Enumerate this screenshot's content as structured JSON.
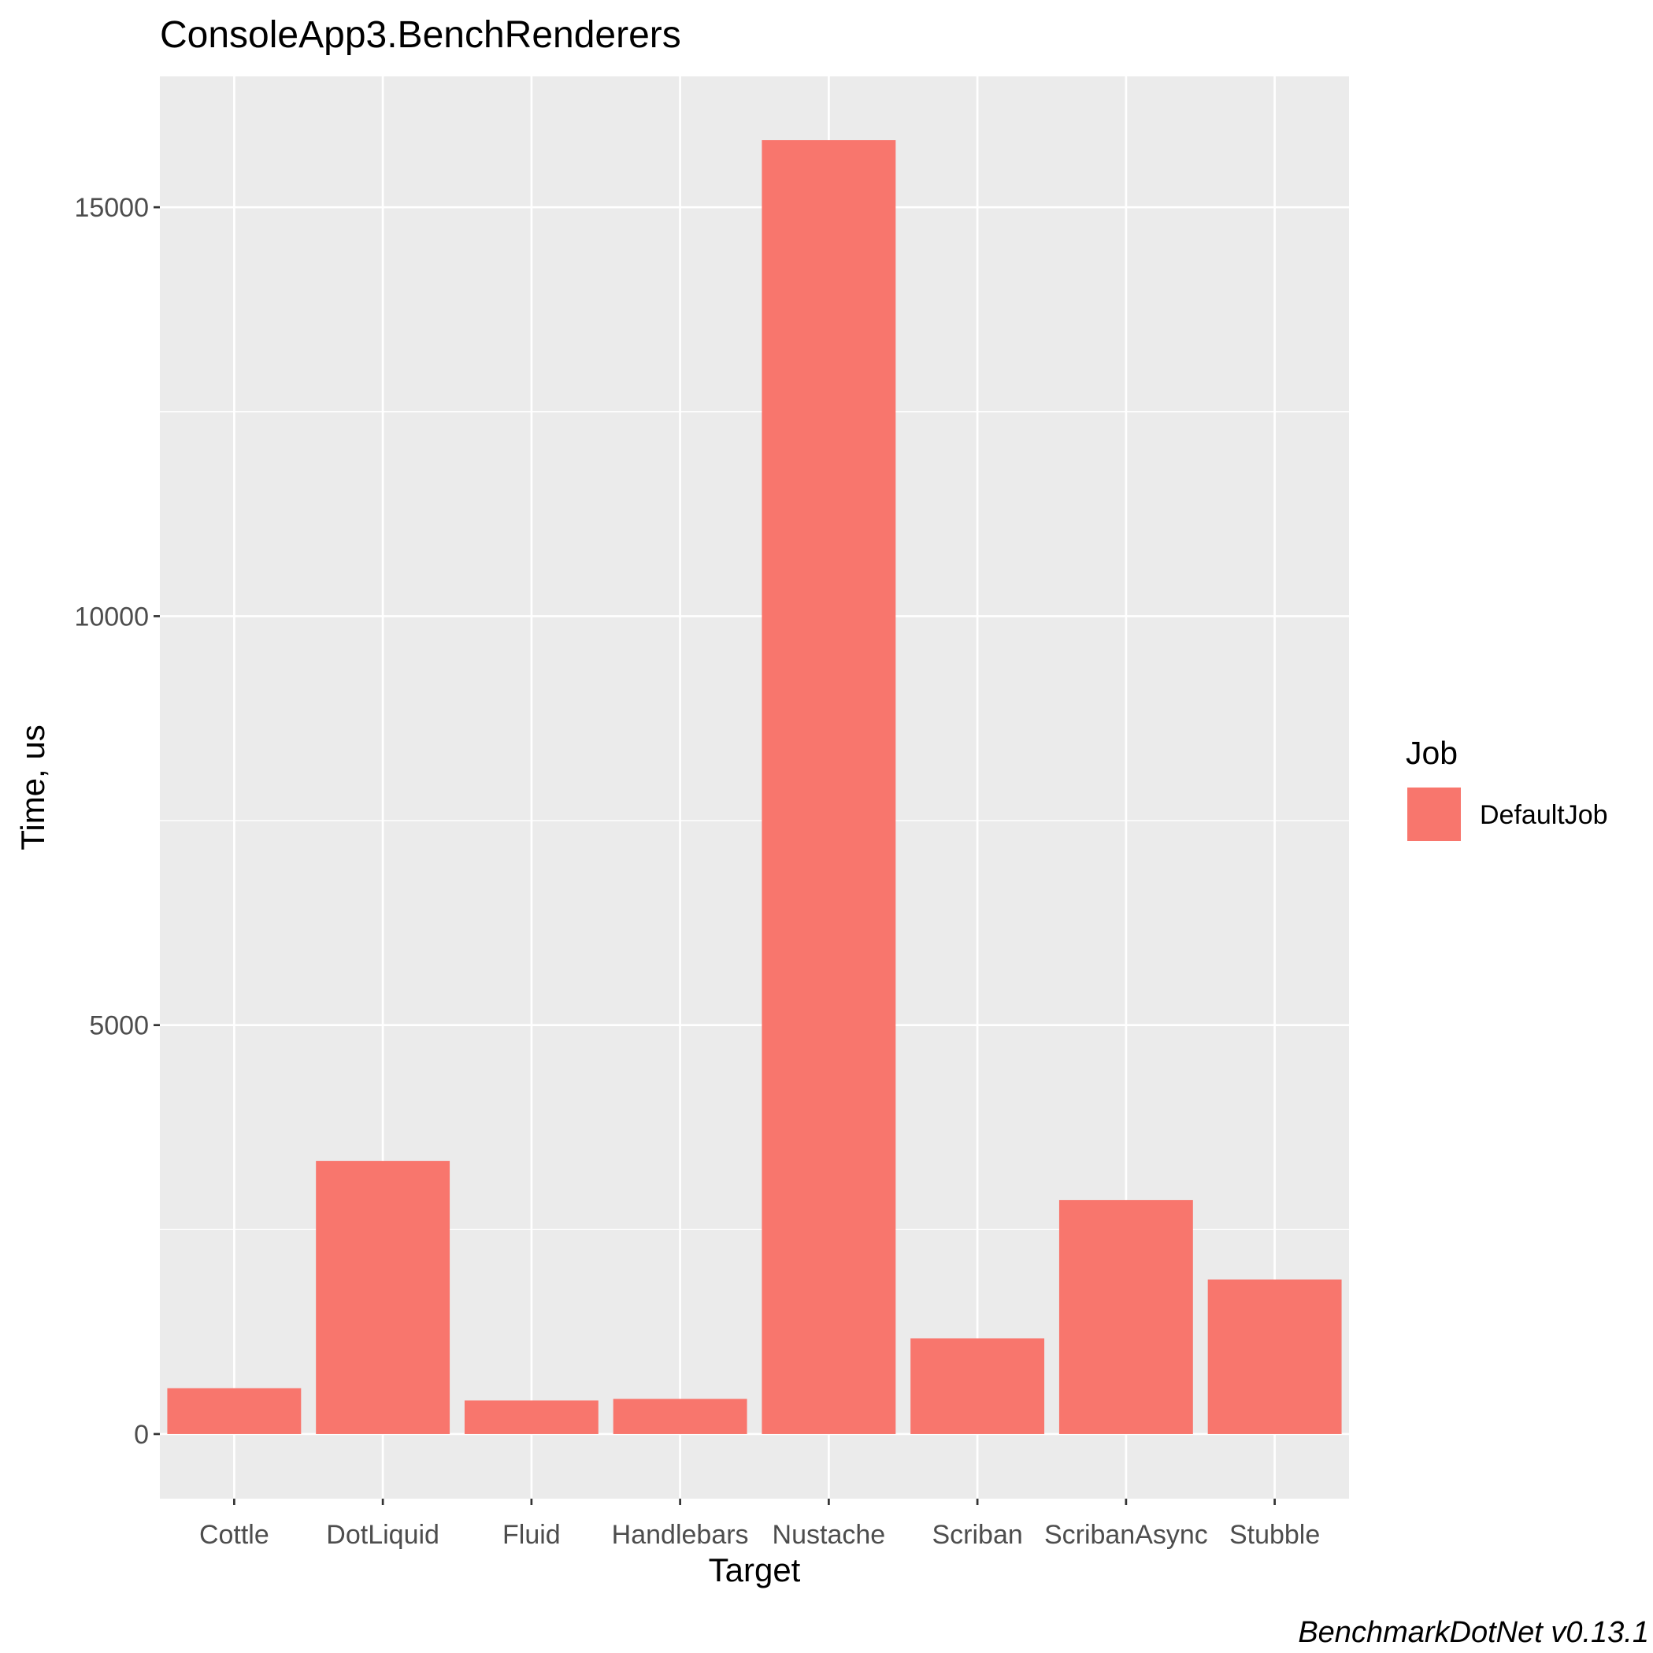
{
  "chart_data": {
    "type": "bar",
    "title": "ConsoleApp3.BenchRenderers",
    "xlabel": "Target",
    "ylabel": "Time, us",
    "categories": [
      "Cottle",
      "DotLiquid",
      "Fluid",
      "Handlebars",
      "Nustache",
      "Scriban",
      "ScribanAsync",
      "Stubble"
    ],
    "series": [
      {
        "name": "DefaultJob",
        "color": "#F8766D",
        "values": [
          560,
          3340,
          410,
          430,
          15820,
          1170,
          2860,
          1890
        ]
      }
    ],
    "yticks": [
      0,
      5000,
      10000,
      15000
    ],
    "ytick_labels": [
      "0",
      "5000",
      "10000",
      "15000"
    ],
    "ylim": [
      -790,
      16600
    ],
    "grid": true,
    "legend": {
      "title": "Job",
      "position": "right"
    },
    "caption": "BenchmarkDotNet v0.13.1"
  },
  "colors": {
    "panel_background": "#EBEBEB",
    "grid_line": "#FFFFFF",
    "bar_fill": "#F8766D"
  }
}
